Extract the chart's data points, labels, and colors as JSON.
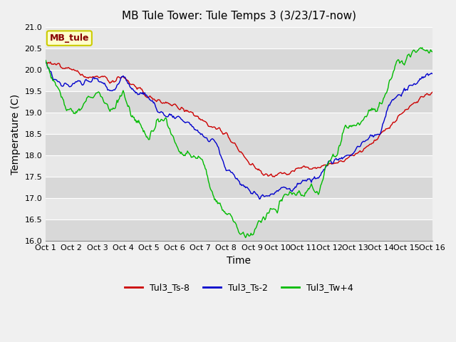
{
  "title": "MB Tule Tower: Tule Temps 3 (3/23/17-now)",
  "xlabel": "Time",
  "ylabel": "Temperature (C)",
  "ylim": [
    16.0,
    21.0
  ],
  "yticks": [
    16.0,
    16.5,
    17.0,
    17.5,
    18.0,
    18.5,
    19.0,
    19.5,
    20.0,
    20.5,
    21.0
  ],
  "xtick_labels": [
    "Oct 1",
    "Oct 2",
    "Oct 3",
    "Oct 4",
    "Oct 5",
    "Oct 6",
    "Oct 7",
    "Oct 8",
    "Oct 9",
    "Oct 10",
    "Oct 11",
    "Oct 12",
    "Oct 13",
    "Oct 14",
    "Oct 15",
    "Oct 16"
  ],
  "legend_labels": [
    "Tul3_Ts-8",
    "Tul3_Ts-2",
    "Tul3_Tw+4"
  ],
  "legend_colors": [
    "#cc0000",
    "#0000cc",
    "#00bb00"
  ],
  "watermark_text": "MB_tule",
  "fig_bg_color": "#f0f0f0",
  "plot_bg_color": "#e8e8e8",
  "band_color_light": "#e8e8e8",
  "band_color_dark": "#d8d8d8",
  "grid_color": "#ffffff",
  "line_colors": [
    "#cc0000",
    "#0000cc",
    "#00bb00"
  ],
  "title_fontsize": 11,
  "axis_label_fontsize": 10,
  "tick_fontsize": 8,
  "watermark_facecolor": "#ffffcc",
  "watermark_edgecolor": "#cccc00",
  "watermark_textcolor": "#880000",
  "red_pts_x": [
    0,
    0.3,
    0.6,
    1.0,
    1.3,
    1.6,
    2.0,
    2.3,
    2.6,
    3.0,
    3.3,
    3.6,
    4.0,
    4.5,
    5.0,
    5.5,
    6.0,
    6.5,
    7.0,
    7.5,
    8.0,
    8.5,
    9.0,
    9.5,
    10.0,
    10.5,
    11.0,
    11.5,
    12.0,
    12.5,
    13.0,
    13.5,
    14.0,
    14.5,
    15.0
  ],
  "red_pts_y": [
    20.2,
    20.15,
    20.05,
    20.0,
    19.95,
    19.8,
    19.85,
    19.8,
    19.75,
    19.85,
    19.7,
    19.6,
    19.35,
    19.25,
    19.2,
    19.05,
    18.85,
    18.65,
    18.5,
    18.15,
    17.75,
    17.55,
    17.55,
    17.6,
    17.75,
    17.7,
    17.8,
    17.85,
    18.05,
    18.2,
    18.5,
    18.8,
    19.1,
    19.3,
    19.5
  ],
  "blue_pts_x": [
    0,
    0.3,
    0.6,
    1.0,
    1.3,
    1.6,
    2.0,
    2.3,
    2.6,
    3.0,
    3.3,
    3.6,
    4.0,
    4.3,
    4.6,
    5.0,
    5.3,
    5.6,
    6.0,
    6.3,
    6.6,
    7.0,
    7.3,
    7.6,
    8.0,
    8.3,
    8.5,
    8.8,
    9.0,
    9.3,
    9.6,
    10.0,
    10.5,
    11.0,
    11.5,
    12.0,
    12.3,
    12.6,
    13.0,
    13.3,
    13.6,
    14.0,
    14.5,
    15.0
  ],
  "blue_pts_y": [
    20.2,
    19.8,
    19.65,
    19.65,
    19.7,
    19.75,
    19.75,
    19.6,
    19.5,
    19.85,
    19.6,
    19.45,
    19.4,
    19.1,
    18.95,
    18.9,
    18.85,
    18.75,
    18.5,
    18.4,
    18.35,
    17.65,
    17.55,
    17.3,
    17.15,
    17.05,
    17.05,
    17.1,
    17.2,
    17.25,
    17.2,
    17.4,
    17.45,
    17.8,
    17.9,
    18.1,
    18.3,
    18.45,
    18.55,
    19.2,
    19.35,
    19.55,
    19.75,
    19.95
  ],
  "green_pts_x": [
    0,
    0.3,
    0.6,
    0.8,
    1.0,
    1.3,
    1.6,
    2.0,
    2.3,
    2.6,
    3.0,
    3.3,
    3.6,
    4.0,
    4.3,
    4.6,
    5.0,
    5.3,
    5.6,
    6.0,
    6.3,
    6.5,
    6.7,
    7.0,
    7.2,
    7.5,
    7.7,
    8.0,
    8.3,
    8.5,
    8.7,
    9.0,
    9.3,
    9.6,
    10.0,
    10.3,
    10.6,
    11.0,
    11.3,
    11.6,
    12.0,
    12.3,
    12.6,
    13.0,
    13.3,
    13.6,
    14.0,
    14.3,
    14.6,
    15.0
  ],
  "green_pts_y": [
    20.2,
    19.8,
    19.4,
    19.1,
    19.1,
    19.0,
    19.3,
    19.5,
    19.2,
    19.05,
    19.5,
    19.0,
    18.75,
    18.35,
    18.8,
    18.85,
    18.35,
    18.0,
    18.0,
    17.95,
    17.5,
    17.05,
    16.9,
    16.65,
    16.6,
    16.2,
    16.15,
    16.1,
    16.45,
    16.55,
    16.75,
    16.75,
    17.15,
    17.1,
    17.15,
    17.2,
    17.15,
    17.95,
    18.0,
    18.65,
    18.7,
    18.8,
    19.0,
    19.2,
    19.55,
    20.15,
    20.25,
    20.45,
    20.5,
    20.45
  ]
}
